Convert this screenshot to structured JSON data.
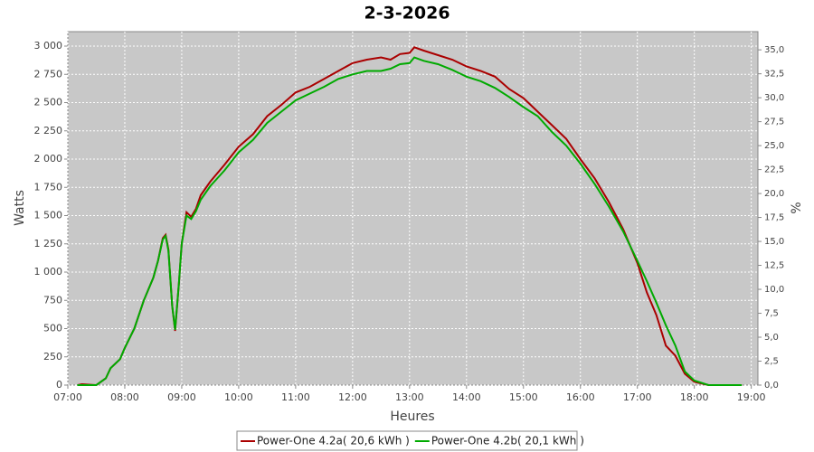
{
  "chart_data": {
    "type": "line",
    "title": "2-3-2026",
    "x_label": "Heures",
    "y_label": "Watts",
    "y2_label": "%",
    "x": [
      "07:10",
      "07:15",
      "07:20",
      "07:30",
      "07:40",
      "07:45",
      "07:55",
      "08:00",
      "08:10",
      "08:20",
      "08:30",
      "08:35",
      "08:40",
      "08:43",
      "08:46",
      "08:50",
      "08:53",
      "08:57",
      "09:00",
      "09:05",
      "09:10",
      "09:15",
      "09:20",
      "09:30",
      "09:45",
      "10:00",
      "10:15",
      "10:30",
      "10:45",
      "11:00",
      "11:15",
      "11:30",
      "11:45",
      "12:00",
      "12:15",
      "12:30",
      "12:40",
      "12:50",
      "13:00",
      "13:05",
      "13:15",
      "13:30",
      "13:45",
      "14:00",
      "14:15",
      "14:30",
      "14:45",
      "15:00",
      "15:15",
      "15:30",
      "15:45",
      "16:00",
      "16:15",
      "16:30",
      "16:45",
      "17:00",
      "17:10",
      "17:20",
      "17:30",
      "17:40",
      "17:50",
      "18:00",
      "18:15",
      "18:50"
    ],
    "series": [
      {
        "name": "Power-One 4.2a( 20,6 kWh )",
        "color": "#aa0000",
        "values": [
          0,
          8,
          5,
          0,
          60,
          150,
          230,
          330,
          500,
          750,
          950,
          1100,
          1300,
          1330,
          1200,
          700,
          480,
          900,
          1250,
          1530,
          1490,
          1560,
          1680,
          1800,
          1950,
          2110,
          2220,
          2380,
          2480,
          2590,
          2640,
          2710,
          2780,
          2850,
          2880,
          2900,
          2880,
          2930,
          2940,
          2990,
          2960,
          2920,
          2880,
          2820,
          2780,
          2730,
          2620,
          2540,
          2420,
          2300,
          2180,
          2000,
          1830,
          1620,
          1380,
          1080,
          820,
          620,
          350,
          260,
          100,
          30,
          0,
          0
        ]
      },
      {
        "name": "Power-One 4.2b( 20,1 kWh )",
        "color": "#00aa00",
        "values": [
          0,
          0,
          0,
          0,
          60,
          150,
          230,
          330,
          500,
          750,
          950,
          1100,
          1290,
          1320,
          1190,
          700,
          490,
          900,
          1250,
          1500,
          1470,
          1540,
          1640,
          1760,
          1900,
          2060,
          2170,
          2320,
          2420,
          2520,
          2580,
          2640,
          2710,
          2750,
          2780,
          2780,
          2800,
          2840,
          2850,
          2900,
          2870,
          2840,
          2790,
          2730,
          2690,
          2630,
          2550,
          2460,
          2380,
          2240,
          2120,
          1960,
          1780,
          1580,
          1360,
          1100,
          920,
          730,
          530,
          350,
          120,
          40,
          0,
          0
        ]
      }
    ],
    "xlim": [
      "07:00",
      "19:07"
    ],
    "xticks": [
      "07:00",
      "08:00",
      "09:00",
      "10:00",
      "11:00",
      "12:00",
      "13:00",
      "14:00",
      "15:00",
      "16:00",
      "17:00",
      "18:00",
      "19:00"
    ],
    "ylim": [
      0,
      3128
    ],
    "yticks": [
      0,
      250,
      500,
      750,
      {
        "value": 1000,
        "label": "1 000"
      },
      {
        "value": 1250,
        "label": "1 250"
      },
      {
        "value": 1500,
        "label": "1 500"
      },
      {
        "value": 1750,
        "label": "1 750"
      },
      {
        "value": 2000,
        "label": "2 000"
      },
      {
        "value": 2250,
        "label": "2 250"
      },
      {
        "value": 2500,
        "label": "2 500"
      },
      {
        "value": 2750,
        "label": "2 750"
      },
      {
        "value": 3000,
        "label": "3 000"
      }
    ],
    "y2lim": [
      0,
      36.9
    ],
    "y2ticks": [
      {
        "value": 0,
        "label": "0,0"
      },
      {
        "value": 2.5,
        "label": "2,5"
      },
      {
        "value": 5,
        "label": "5,0"
      },
      {
        "value": 7.5,
        "label": "7,5"
      },
      {
        "value": 10,
        "label": "10,0"
      },
      {
        "value": 12.5,
        "label": "12,5"
      },
      {
        "value": 15,
        "label": "15,0"
      },
      {
        "value": 17.5,
        "label": "17,5"
      },
      {
        "value": 20,
        "label": "20,0"
      },
      {
        "value": 22.5,
        "label": "22,5"
      },
      {
        "value": 25,
        "label": "25,0"
      },
      {
        "value": 27.5,
        "label": "27,5"
      },
      {
        "value": 30,
        "label": "30,0"
      },
      {
        "value": 32.5,
        "label": "32,5"
      },
      {
        "value": 35,
        "label": "35,0"
      }
    ],
    "grid": true,
    "legend": "bottom"
  }
}
